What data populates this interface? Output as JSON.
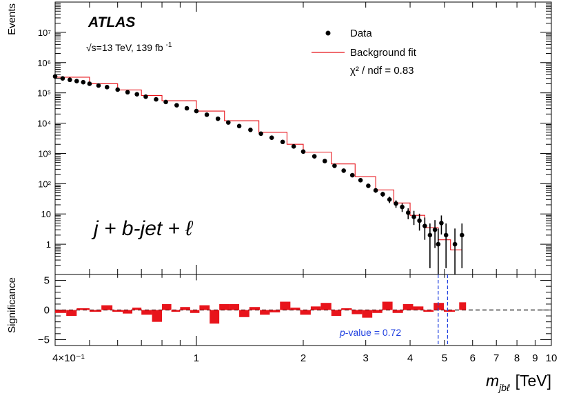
{
  "chart_data": {
    "type": "scatter",
    "experiment": "ATLAS",
    "energy_label": "√s=13 TeV,  139 fb",
    "lumi_exponent": "-1",
    "channel_label": "j + b-jet + ℓ",
    "legend": {
      "data_label": "Data",
      "fit_label": "Background fit",
      "chi2_label": "χ² / ndf = 0.83",
      "placement": "top-right"
    },
    "xlabel": "m_jbℓ [TeV]",
    "xlabel_main": "m",
    "xlabel_sub": "jbℓ",
    "xlabel_unit": "[TeV]",
    "x_scale": "log",
    "xlim": [
      0.4,
      10
    ],
    "x_ticks": [
      {
        "value": 0.4,
        "label": "4×10⁻¹"
      },
      {
        "value": 1,
        "label": "1"
      },
      {
        "value": 2,
        "label": "2"
      },
      {
        "value": 3,
        "label": "3"
      },
      {
        "value": 4,
        "label": "4"
      },
      {
        "value": 5,
        "label": "5"
      },
      {
        "value": 6,
        "label": "6"
      },
      {
        "value": 7,
        "label": "7"
      },
      {
        "value": 8,
        "label": "8"
      },
      {
        "value": 9,
        "label": "9"
      },
      {
        "value": 10,
        "label": "10"
      }
    ],
    "top_panel": {
      "ylabel": "Events",
      "y_scale": "log",
      "ylim": [
        0.1,
        100000000
      ],
      "y_ticks": [
        {
          "value": 1,
          "label": "1"
        },
        {
          "value": 10,
          "label": "10"
        },
        {
          "value": 100,
          "label": "10²"
        },
        {
          "value": 1000,
          "label": "10³"
        },
        {
          "value": 10000,
          "label": "10⁴"
        },
        {
          "value": 100000,
          "label": "10⁵"
        },
        {
          "value": 1000000,
          "label": "10⁶"
        },
        {
          "value": 10000000,
          "label": "10⁷"
        }
      ],
      "fit_curve": {
        "color": "#e8141b",
        "points": [
          [
            0.4,
            330000
          ],
          [
            0.5,
            200000
          ],
          [
            0.6,
            125000
          ],
          [
            0.7,
            82000
          ],
          [
            0.8,
            55000
          ],
          [
            1.0,
            25000
          ],
          [
            1.2,
            12000
          ],
          [
            1.5,
            5000
          ],
          [
            1.8,
            2000
          ],
          [
            2.0,
            1100
          ],
          [
            2.4,
            450
          ],
          [
            2.8,
            170
          ],
          [
            3.2,
            62
          ],
          [
            3.6,
            23
          ],
          [
            4.0,
            9
          ],
          [
            4.4,
            3.5
          ],
          [
            4.8,
            1.4
          ],
          [
            5.2,
            0.65
          ],
          [
            5.6,
            0.3
          ]
        ]
      },
      "data": [
        {
          "x": 0.4,
          "y": 350000
        },
        {
          "x": 0.42,
          "y": 300000
        },
        {
          "x": 0.44,
          "y": 270000
        },
        {
          "x": 0.46,
          "y": 245000
        },
        {
          "x": 0.48,
          "y": 225000
        },
        {
          "x": 0.5,
          "y": 200000
        },
        {
          "x": 0.53,
          "y": 175000
        },
        {
          "x": 0.56,
          "y": 155000
        },
        {
          "x": 0.6,
          "y": 128000
        },
        {
          "x": 0.64,
          "y": 105000
        },
        {
          "x": 0.68,
          "y": 90000
        },
        {
          "x": 0.72,
          "y": 75000
        },
        {
          "x": 0.77,
          "y": 61000
        },
        {
          "x": 0.82,
          "y": 50000
        },
        {
          "x": 0.88,
          "y": 39000
        },
        {
          "x": 0.94,
          "y": 31000
        },
        {
          "x": 1.0,
          "y": 25000
        },
        {
          "x": 1.07,
          "y": 19000
        },
        {
          "x": 1.15,
          "y": 14000
        },
        {
          "x": 1.23,
          "y": 10500
        },
        {
          "x": 1.32,
          "y": 8000
        },
        {
          "x": 1.42,
          "y": 6000
        },
        {
          "x": 1.52,
          "y": 4500
        },
        {
          "x": 1.63,
          "y": 3300
        },
        {
          "x": 1.75,
          "y": 2400
        },
        {
          "x": 1.88,
          "y": 1700
        },
        {
          "x": 2.0,
          "y": 1150
        },
        {
          "x": 2.15,
          "y": 800
        },
        {
          "x": 2.3,
          "y": 560
        },
        {
          "x": 2.45,
          "y": 390
        },
        {
          "x": 2.6,
          "y": 270
        },
        {
          "x": 2.75,
          "y": 190
        },
        {
          "x": 2.9,
          "y": 130
        },
        {
          "x": 3.05,
          "y": 85
        },
        {
          "x": 3.2,
          "y": 60
        },
        {
          "x": 3.35,
          "y": 45
        },
        {
          "x": 3.5,
          "y": 30
        },
        {
          "x": 3.65,
          "y": 22
        },
        {
          "x": 3.8,
          "y": 17
        },
        {
          "x": 3.95,
          "y": 11
        },
        {
          "x": 4.1,
          "y": 8
        },
        {
          "x": 4.25,
          "y": 6
        },
        {
          "x": 4.4,
          "y": 4
        },
        {
          "x": 4.55,
          "y": 2
        },
        {
          "x": 4.7,
          "y": 3
        },
        {
          "x": 4.8,
          "y": 1
        },
        {
          "x": 4.9,
          "y": 5
        },
        {
          "x": 5.05,
          "y": 2
        },
        {
          "x": 5.35,
          "y": 1
        },
        {
          "x": 5.6,
          "y": 2
        }
      ]
    },
    "bottom_panel": {
      "ylabel": "Significance",
      "ylim": [
        -6,
        6
      ],
      "y_ticks": [
        {
          "value": 5,
          "label": "5"
        },
        {
          "value": 0,
          "label": "0"
        },
        {
          "value": -5,
          "label": "−5"
        }
      ],
      "bar_color": "#e8141b",
      "window_lines": [
        4.8,
        5.1
      ],
      "window_color": "#2040e0",
      "pvalue_label_p": "p",
      "pvalue_label_rest": "-value = 0.72",
      "bins": [
        {
          "lo": 0.4,
          "hi": 0.43,
          "sig": -0.5
        },
        {
          "lo": 0.43,
          "hi": 0.46,
          "sig": -1.0
        },
        {
          "lo": 0.46,
          "hi": 0.5,
          "sig": 0.3
        },
        {
          "lo": 0.5,
          "hi": 0.54,
          "sig": -0.3
        },
        {
          "lo": 0.54,
          "hi": 0.58,
          "sig": 0.8
        },
        {
          "lo": 0.58,
          "hi": 0.62,
          "sig": -0.3
        },
        {
          "lo": 0.62,
          "hi": 0.66,
          "sig": -0.6
        },
        {
          "lo": 0.66,
          "hi": 0.7,
          "sig": 0.4
        },
        {
          "lo": 0.7,
          "hi": 0.75,
          "sig": -0.8
        },
        {
          "lo": 0.75,
          "hi": 0.8,
          "sig": -2.0
        },
        {
          "lo": 0.8,
          "hi": 0.85,
          "sig": 1.0
        },
        {
          "lo": 0.85,
          "hi": 0.9,
          "sig": -0.3
        },
        {
          "lo": 0.9,
          "hi": 0.96,
          "sig": 0.5
        },
        {
          "lo": 0.96,
          "hi": 1.02,
          "sig": -0.5
        },
        {
          "lo": 1.02,
          "hi": 1.09,
          "sig": 0.8
        },
        {
          "lo": 1.09,
          "hi": 1.16,
          "sig": -2.3
        },
        {
          "lo": 1.16,
          "hi": 1.24,
          "sig": 1.0
        },
        {
          "lo": 1.24,
          "hi": 1.32,
          "sig": 1.0
        },
        {
          "lo": 1.32,
          "hi": 1.41,
          "sig": -1.2
        },
        {
          "lo": 1.41,
          "hi": 1.51,
          "sig": 0.5
        },
        {
          "lo": 1.51,
          "hi": 1.61,
          "sig": -0.8
        },
        {
          "lo": 1.61,
          "hi": 1.72,
          "sig": -0.4
        },
        {
          "lo": 1.72,
          "hi": 1.84,
          "sig": 1.4
        },
        {
          "lo": 1.84,
          "hi": 1.96,
          "sig": 0.4
        },
        {
          "lo": 1.96,
          "hi": 2.1,
          "sig": -0.8
        },
        {
          "lo": 2.1,
          "hi": 2.24,
          "sig": 0.6
        },
        {
          "lo": 2.24,
          "hi": 2.4,
          "sig": 1.2
        },
        {
          "lo": 2.4,
          "hi": 2.56,
          "sig": -1.0
        },
        {
          "lo": 2.56,
          "hi": 2.74,
          "sig": 0.3
        },
        {
          "lo": 2.74,
          "hi": 2.93,
          "sig": -0.7
        },
        {
          "lo": 2.93,
          "hi": 3.13,
          "sig": -1.3
        },
        {
          "lo": 3.13,
          "hi": 3.34,
          "sig": -0.5
        },
        {
          "lo": 3.34,
          "hi": 3.57,
          "sig": 1.4
        },
        {
          "lo": 3.57,
          "hi": 3.82,
          "sig": -0.5
        },
        {
          "lo": 3.82,
          "hi": 4.08,
          "sig": 1.0
        },
        {
          "lo": 4.08,
          "hi": 4.36,
          "sig": 0.6
        },
        {
          "lo": 4.36,
          "hi": 4.66,
          "sig": -0.3
        },
        {
          "lo": 4.66,
          "hi": 4.98,
          "sig": 1.2
        },
        {
          "lo": 4.98,
          "hi": 5.35,
          "sig": -0.3
        },
        {
          "lo": 5.5,
          "hi": 5.75,
          "sig": 1.3
        }
      ]
    }
  }
}
